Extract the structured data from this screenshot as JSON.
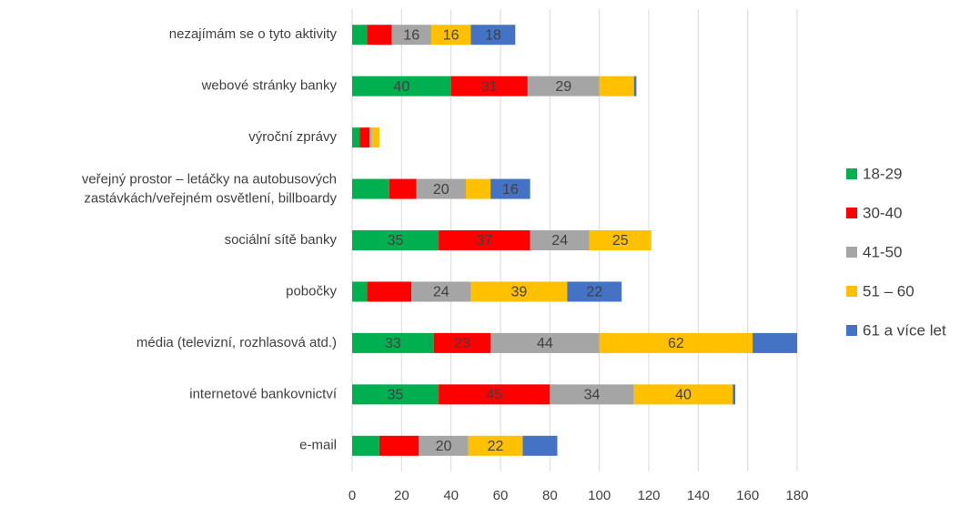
{
  "chart_data": {
    "type": "stacked_barh",
    "categories": [
      "nezajímám se o tyto aktivity",
      "webové stránky banky",
      "výroční zprávy",
      "veřejný prostor – letáčky na autobusových zastávkách/veřejném osvětlení, billboardy",
      "sociální sítě banky",
      "pobočky",
      "média (televizní, rozhlasová atd.)",
      "internetové bankovnictví",
      "e-mail"
    ],
    "series": [
      {
        "name": "18-29",
        "color": "#00b050",
        "values": [
          6,
          40,
          3,
          15,
          35,
          6,
          33,
          35,
          11
        ],
        "value_labels": [
          null,
          "40",
          null,
          null,
          "35",
          null,
          "33",
          "35",
          null
        ]
      },
      {
        "name": "30-40",
        "color": "#ff0000",
        "values": [
          10,
          31,
          4,
          11,
          37,
          18,
          23,
          45,
          16
        ],
        "value_labels": [
          null,
          "31",
          null,
          null,
          "37",
          null,
          "23",
          "45",
          null
        ]
      },
      {
        "name": "41-50",
        "color": "#a5a5a5",
        "values": [
          16,
          29,
          1,
          20,
          24,
          24,
          44,
          34,
          20
        ],
        "value_labels": [
          "16",
          "29",
          null,
          "20",
          "24",
          "24",
          "44",
          "34",
          "20"
        ]
      },
      {
        "name": "51 – 60",
        "color": "#ffc000",
        "values": [
          16,
          14,
          3,
          10,
          25,
          39,
          62,
          40,
          22
        ],
        "value_labels": [
          "16",
          null,
          null,
          null,
          "25",
          "39",
          "62",
          "40",
          "22"
        ]
      },
      {
        "name": "61 a více let",
        "color": "#4472c4",
        "values": [
          18,
          1,
          0,
          16,
          0,
          22,
          18,
          1,
          14
        ],
        "value_labels": [
          "18",
          null,
          null,
          "16",
          null,
          "22",
          null,
          null,
          null
        ]
      }
    ],
    "xlim": [
      0,
      180
    ],
    "xticks": [
      0,
      20,
      40,
      60,
      80,
      100,
      120,
      140,
      160,
      180
    ],
    "grid": true,
    "legend": "right"
  }
}
